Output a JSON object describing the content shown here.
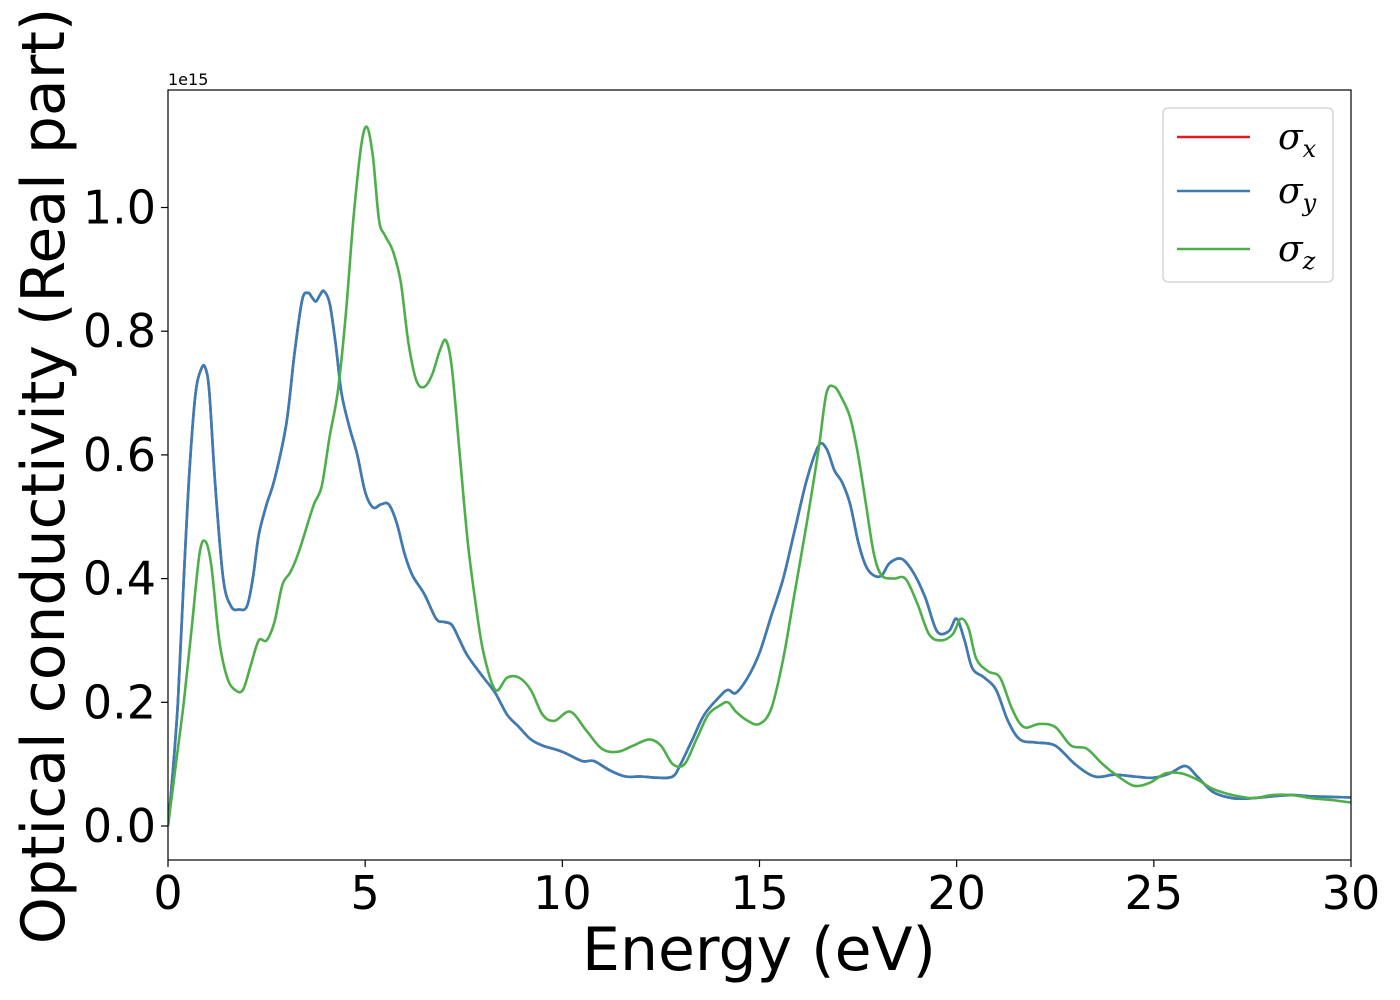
{
  "chart_data": {
    "type": "line",
    "xlabel": "Energy (eV)",
    "ylabel": "Optical conductivity (Real part)",
    "y_offset_label": "1e15",
    "xlim": [
      0,
      30
    ],
    "ylim": [
      -0.055,
      1.19
    ],
    "x_ticks": [
      0,
      5,
      10,
      15,
      20,
      25,
      30
    ],
    "x_tick_labels": [
      "0",
      "5",
      "10",
      "15",
      "20",
      "25",
      "30"
    ],
    "y_ticks": [
      0.0,
      0.2,
      0.4,
      0.6,
      0.8,
      1.0
    ],
    "y_tick_labels": [
      "0.0",
      "0.2",
      "0.4",
      "0.6",
      "0.8",
      "1.0"
    ],
    "grid": false,
    "legend_position": "top-right",
    "series": [
      {
        "name": "σx",
        "symbol": "σ",
        "subscript": "x",
        "color": "#e41a1c",
        "x": [
          0,
          0.1,
          0.25,
          0.4,
          0.55,
          0.7,
          0.85,
          0.95,
          1.05,
          1.2,
          1.4,
          1.6,
          1.8,
          2.0,
          2.15,
          2.3,
          2.5,
          2.7,
          3.0,
          3.2,
          3.4,
          3.55,
          3.65,
          3.75,
          3.85,
          3.95,
          4.1,
          4.25,
          4.4,
          4.6,
          4.8,
          5.0,
          5.2,
          5.4,
          5.6,
          5.8,
          6.0,
          6.2,
          6.5,
          6.8,
          7.0,
          7.2,
          7.4,
          7.6,
          8.0,
          8.3,
          8.6,
          8.9,
          9.2,
          9.5,
          10.0,
          10.5,
          10.8,
          11.2,
          11.6,
          12.0,
          12.4,
          12.8,
          13.0,
          13.3,
          13.6,
          14.0,
          14.2,
          14.4,
          14.7,
          15.0,
          15.3,
          15.6,
          15.9,
          16.2,
          16.5,
          16.7,
          16.9,
          17.1,
          17.3,
          17.5,
          17.7,
          17.9,
          18.1,
          18.3,
          18.6,
          18.9,
          19.2,
          19.5,
          19.8,
          20.0,
          20.2,
          20.4,
          20.7,
          21.0,
          21.3,
          21.6,
          22.0,
          22.5,
          23.0,
          23.5,
          24.0,
          24.5,
          25.0,
          25.4,
          25.8,
          26.1,
          26.5,
          27.0,
          27.5,
          28.0,
          28.5,
          29.0,
          29.5,
          30.0
        ],
        "y": [
          0.0,
          0.07,
          0.2,
          0.4,
          0.58,
          0.7,
          0.74,
          0.74,
          0.7,
          0.55,
          0.4,
          0.355,
          0.35,
          0.355,
          0.4,
          0.47,
          0.52,
          0.56,
          0.65,
          0.76,
          0.85,
          0.862,
          0.855,
          0.848,
          0.858,
          0.865,
          0.845,
          0.78,
          0.7,
          0.645,
          0.6,
          0.54,
          0.515,
          0.52,
          0.52,
          0.49,
          0.44,
          0.405,
          0.375,
          0.335,
          0.33,
          0.325,
          0.3,
          0.275,
          0.24,
          0.215,
          0.18,
          0.16,
          0.14,
          0.13,
          0.12,
          0.105,
          0.105,
          0.09,
          0.08,
          0.08,
          0.078,
          0.08,
          0.1,
          0.14,
          0.18,
          0.21,
          0.22,
          0.215,
          0.24,
          0.28,
          0.34,
          0.4,
          0.48,
          0.56,
          0.615,
          0.61,
          0.575,
          0.555,
          0.52,
          0.46,
          0.42,
          0.405,
          0.405,
          0.425,
          0.432,
          0.41,
          0.37,
          0.315,
          0.315,
          0.335,
          0.3,
          0.255,
          0.24,
          0.22,
          0.17,
          0.14,
          0.135,
          0.13,
          0.1,
          0.08,
          0.083,
          0.08,
          0.078,
          0.085,
          0.097,
          0.08,
          0.055,
          0.045,
          0.045,
          0.048,
          0.05,
          0.048,
          0.047,
          0.046
        ]
      },
      {
        "name": "σy",
        "symbol": "σ",
        "subscript": "y",
        "color": "#377eb8",
        "x": [
          0,
          0.1,
          0.25,
          0.4,
          0.55,
          0.7,
          0.85,
          0.95,
          1.05,
          1.2,
          1.4,
          1.6,
          1.8,
          2.0,
          2.15,
          2.3,
          2.5,
          2.7,
          3.0,
          3.2,
          3.4,
          3.55,
          3.65,
          3.75,
          3.85,
          3.95,
          4.1,
          4.25,
          4.4,
          4.6,
          4.8,
          5.0,
          5.2,
          5.4,
          5.6,
          5.8,
          6.0,
          6.2,
          6.5,
          6.8,
          7.0,
          7.2,
          7.4,
          7.6,
          8.0,
          8.3,
          8.6,
          8.9,
          9.2,
          9.5,
          10.0,
          10.5,
          10.8,
          11.2,
          11.6,
          12.0,
          12.4,
          12.8,
          13.0,
          13.3,
          13.6,
          14.0,
          14.2,
          14.4,
          14.7,
          15.0,
          15.3,
          15.6,
          15.9,
          16.2,
          16.5,
          16.7,
          16.9,
          17.1,
          17.3,
          17.5,
          17.7,
          17.9,
          18.1,
          18.3,
          18.6,
          18.9,
          19.2,
          19.5,
          19.8,
          20.0,
          20.2,
          20.4,
          20.7,
          21.0,
          21.3,
          21.6,
          22.0,
          22.5,
          23.0,
          23.5,
          24.0,
          24.5,
          25.0,
          25.4,
          25.8,
          26.1,
          26.5,
          27.0,
          27.5,
          28.0,
          28.5,
          29.0,
          29.5,
          30.0
        ],
        "y": [
          0.0,
          0.07,
          0.2,
          0.4,
          0.58,
          0.7,
          0.74,
          0.74,
          0.7,
          0.55,
          0.4,
          0.355,
          0.35,
          0.355,
          0.4,
          0.47,
          0.52,
          0.56,
          0.65,
          0.76,
          0.85,
          0.862,
          0.855,
          0.848,
          0.858,
          0.865,
          0.845,
          0.78,
          0.7,
          0.645,
          0.6,
          0.54,
          0.515,
          0.52,
          0.52,
          0.49,
          0.44,
          0.405,
          0.375,
          0.335,
          0.33,
          0.325,
          0.3,
          0.275,
          0.24,
          0.215,
          0.18,
          0.16,
          0.14,
          0.13,
          0.12,
          0.105,
          0.105,
          0.09,
          0.08,
          0.08,
          0.078,
          0.08,
          0.1,
          0.14,
          0.18,
          0.21,
          0.22,
          0.215,
          0.24,
          0.28,
          0.34,
          0.4,
          0.48,
          0.56,
          0.615,
          0.61,
          0.575,
          0.555,
          0.52,
          0.46,
          0.42,
          0.405,
          0.405,
          0.425,
          0.432,
          0.41,
          0.37,
          0.315,
          0.315,
          0.335,
          0.3,
          0.255,
          0.24,
          0.22,
          0.17,
          0.14,
          0.135,
          0.13,
          0.1,
          0.08,
          0.083,
          0.08,
          0.078,
          0.085,
          0.097,
          0.08,
          0.055,
          0.045,
          0.045,
          0.048,
          0.05,
          0.048,
          0.047,
          0.046
        ]
      },
      {
        "name": "σz",
        "symbol": "σ",
        "subscript": "z",
        "color": "#4daf4a",
        "x": [
          0,
          0.2,
          0.4,
          0.6,
          0.8,
          0.95,
          1.1,
          1.3,
          1.5,
          1.7,
          1.9,
          2.1,
          2.3,
          2.5,
          2.7,
          2.9,
          3.1,
          3.3,
          3.5,
          3.7,
          3.9,
          4.1,
          4.3,
          4.5,
          4.7,
          4.9,
          5.05,
          5.2,
          5.35,
          5.5,
          5.7,
          5.9,
          6.1,
          6.3,
          6.5,
          6.7,
          6.9,
          7.05,
          7.2,
          7.4,
          7.6,
          7.8,
          8.0,
          8.3,
          8.6,
          8.9,
          9.2,
          9.5,
          9.8,
          10.2,
          10.6,
          11.0,
          11.4,
          11.8,
          12.2,
          12.5,
          12.8,
          13.1,
          13.4,
          13.7,
          14.0,
          14.2,
          14.4,
          14.7,
          15.0,
          15.3,
          15.6,
          15.9,
          16.2,
          16.5,
          16.7,
          16.9,
          17.1,
          17.3,
          17.5,
          17.7,
          17.9,
          18.1,
          18.4,
          18.7,
          19.0,
          19.3,
          19.6,
          19.9,
          20.1,
          20.3,
          20.5,
          20.8,
          21.1,
          21.4,
          21.7,
          22.1,
          22.5,
          22.9,
          23.3,
          23.7,
          24.1,
          24.5,
          24.9,
          25.3,
          25.7,
          26.1,
          26.5,
          27.0,
          27.5,
          28.0,
          28.5,
          29.0,
          29.5,
          30.0
        ],
        "y": [
          0.0,
          0.1,
          0.2,
          0.32,
          0.44,
          0.46,
          0.42,
          0.3,
          0.24,
          0.22,
          0.22,
          0.26,
          0.3,
          0.3,
          0.33,
          0.39,
          0.41,
          0.44,
          0.48,
          0.52,
          0.55,
          0.63,
          0.7,
          0.82,
          0.98,
          1.1,
          1.13,
          1.08,
          0.98,
          0.955,
          0.93,
          0.88,
          0.78,
          0.72,
          0.71,
          0.73,
          0.77,
          0.785,
          0.74,
          0.6,
          0.46,
          0.36,
          0.28,
          0.22,
          0.24,
          0.24,
          0.22,
          0.18,
          0.17,
          0.185,
          0.155,
          0.125,
          0.12,
          0.13,
          0.14,
          0.13,
          0.1,
          0.1,
          0.14,
          0.18,
          0.195,
          0.2,
          0.185,
          0.17,
          0.165,
          0.19,
          0.27,
          0.38,
          0.49,
          0.61,
          0.7,
          0.71,
          0.69,
          0.66,
          0.6,
          0.52,
          0.44,
          0.405,
          0.4,
          0.4,
          0.36,
          0.31,
          0.3,
          0.31,
          0.335,
          0.32,
          0.27,
          0.25,
          0.24,
          0.19,
          0.16,
          0.165,
          0.16,
          0.13,
          0.125,
          0.1,
          0.08,
          0.065,
          0.07,
          0.085,
          0.085,
          0.075,
          0.06,
          0.05,
          0.045,
          0.05,
          0.05,
          0.045,
          0.042,
          0.038
        ]
      }
    ]
  }
}
